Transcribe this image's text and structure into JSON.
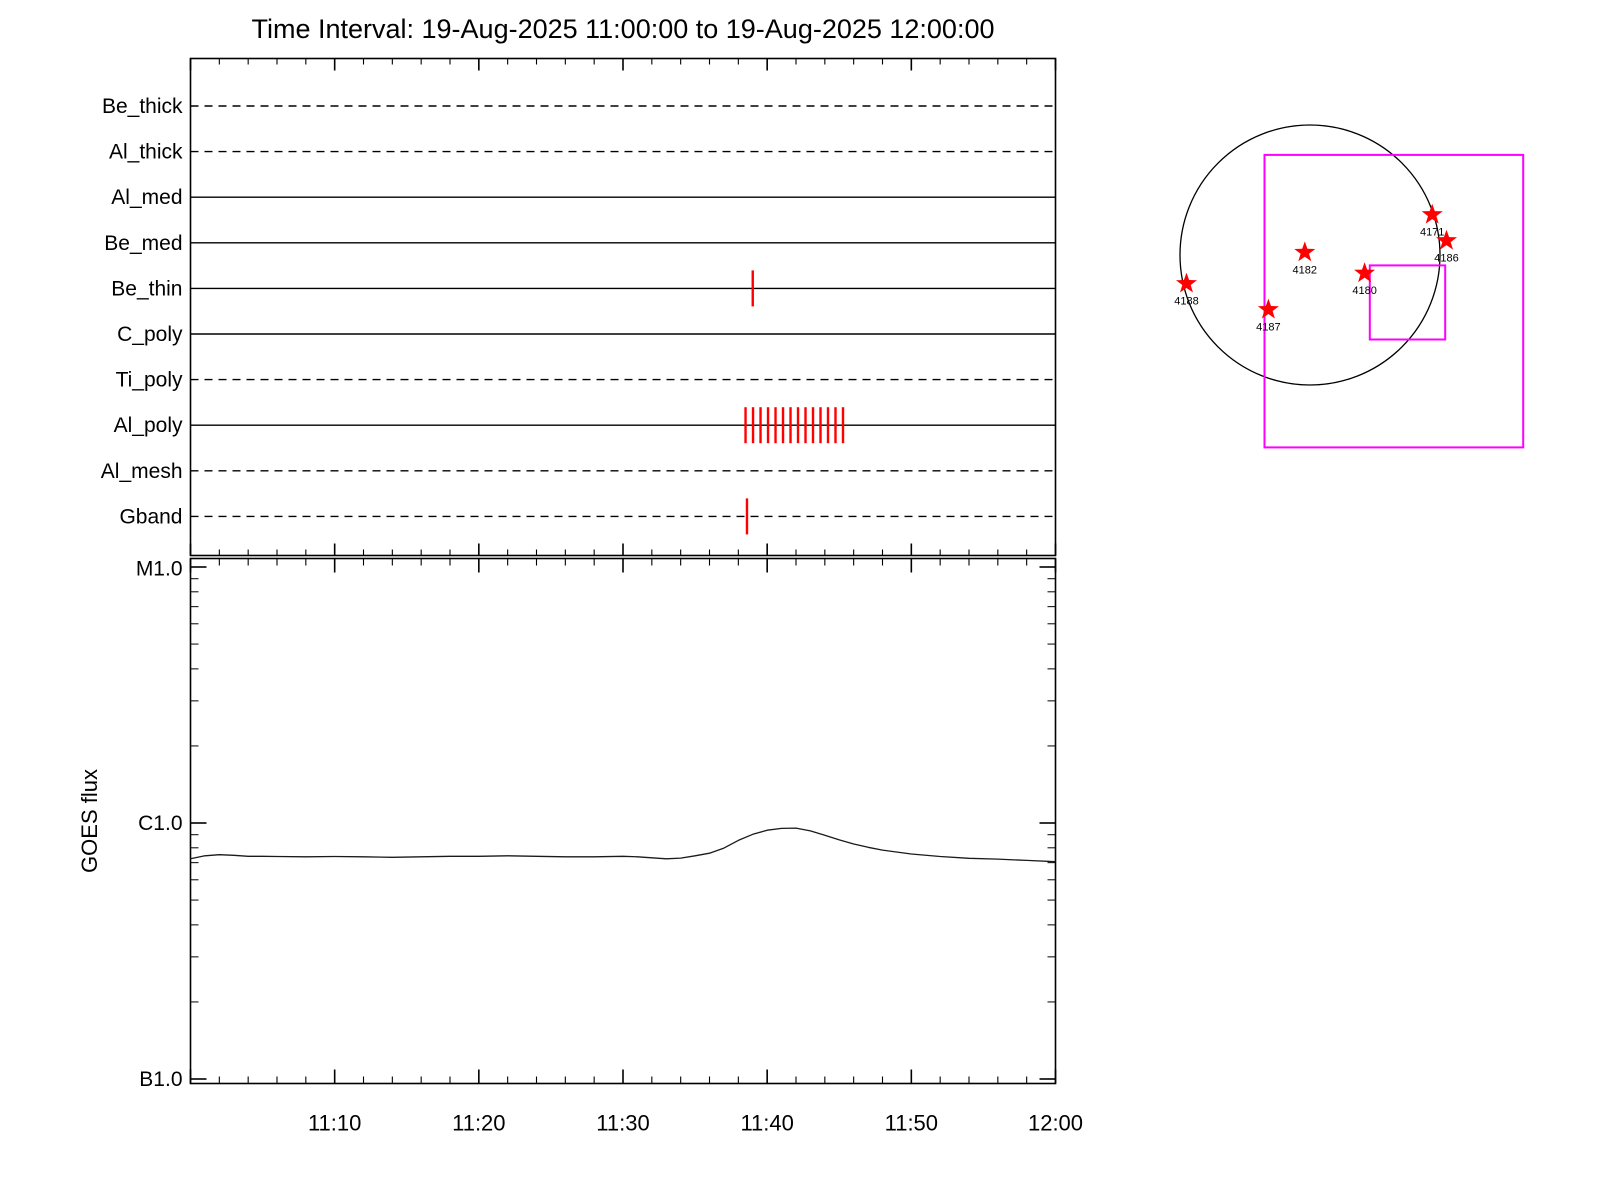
{
  "title": "Time Interval: 19-Aug-2025 11:00:00 to 19-Aug-2025 12:00:00",
  "colors": {
    "exposure_tick": "#ff0000",
    "fov_box": "#ff00ff",
    "axis": "#000000",
    "flux_line": "#1a1a1a",
    "star": "#ff0000"
  },
  "chart_data": [
    {
      "type": "timeline",
      "name": "xrt-filter-exposure-timeline",
      "x_start_label": "11:00",
      "x_end_label": "12:00",
      "x_range_minutes": [
        0,
        60
      ],
      "rows": [
        {
          "label": "Be_thick",
          "line_style": "dashed",
          "exposure_minutes": []
        },
        {
          "label": "Al_thick",
          "line_style": "dashed",
          "exposure_minutes": []
        },
        {
          "label": "Al_med",
          "line_style": "solid",
          "exposure_minutes": []
        },
        {
          "label": "Be_med",
          "line_style": "solid",
          "exposure_minutes": []
        },
        {
          "label": "Be_thin",
          "line_style": "solid",
          "exposure_minutes": [
            39.0
          ]
        },
        {
          "label": "C_poly",
          "line_style": "solid",
          "exposure_minutes": []
        },
        {
          "label": "Ti_poly",
          "line_style": "dashed",
          "exposure_minutes": []
        },
        {
          "label": "Al_poly",
          "line_style": "solid",
          "exposure_minutes": [
            38.5,
            39.02,
            39.54,
            40.06,
            40.58,
            41.1,
            41.62,
            42.14,
            42.66,
            43.18,
            43.7,
            44.22,
            44.74,
            45.26
          ]
        },
        {
          "label": "Al_mesh",
          "line_style": "dashed",
          "exposure_minutes": []
        },
        {
          "label": "Gband",
          "line_style": "dashed",
          "exposure_minutes": [
            38.6
          ]
        }
      ]
    },
    {
      "type": "line",
      "name": "goes-flux",
      "ylabel": "GOES flux",
      "ylim_log10": [
        -7.02,
        -4.97
      ],
      "y_ticks": [
        {
          "label": "M1.0",
          "log10_flux": -5
        },
        {
          "label": "C1.0",
          "log10_flux": -6
        },
        {
          "label": "B1.0",
          "log10_flux": -7
        }
      ],
      "x_minor_step_minutes": 2,
      "x_major_ticks": [
        {
          "minute": 10,
          "label": "11:10"
        },
        {
          "minute": 20,
          "label": "11:20"
        },
        {
          "minute": 30,
          "label": "11:30"
        },
        {
          "minute": 40,
          "label": "11:40"
        },
        {
          "minute": 50,
          "label": "11:50"
        },
        {
          "minute": 60,
          "label": "12:00"
        }
      ],
      "series": [
        {
          "name": "GOES flux",
          "x_minutes": [
            0,
            1,
            2,
            3,
            4,
            5,
            6,
            8,
            10,
            12,
            14,
            16,
            18,
            20,
            22,
            24,
            26,
            28,
            30,
            31,
            32,
            33,
            34,
            35,
            36,
            37,
            38,
            39,
            40,
            41,
            42,
            43,
            44,
            45,
            46,
            47,
            48,
            50,
            52,
            54,
            56,
            58,
            60
          ],
          "log10_flux": [
            -6.14,
            -6.128,
            -6.124,
            -6.126,
            -6.13,
            -6.13,
            -6.131,
            -6.132,
            -6.131,
            -6.132,
            -6.134,
            -6.132,
            -6.13,
            -6.13,
            -6.128,
            -6.13,
            -6.132,
            -6.132,
            -6.13,
            -6.132,
            -6.136,
            -6.14,
            -6.137,
            -6.128,
            -6.118,
            -6.098,
            -6.068,
            -6.044,
            -6.028,
            -6.021,
            -6.02,
            -6.031,
            -6.048,
            -6.066,
            -6.082,
            -6.095,
            -6.106,
            -6.121,
            -6.131,
            -6.138,
            -6.141,
            -6.146,
            -6.151
          ]
        }
      ]
    },
    {
      "type": "solar_map",
      "name": "full-disk-active-regions",
      "active_regions": [
        {
          "label": "4171",
          "x_rsun": 0.94,
          "y_rsun": 0.31
        },
        {
          "label": "4186",
          "x_rsun": 1.05,
          "y_rsun": 0.11
        },
        {
          "label": "4182",
          "x_rsun": -0.04,
          "y_rsun": 0.02
        },
        {
          "label": "4180",
          "x_rsun": 0.42,
          "y_rsun": -0.14
        },
        {
          "label": "4188",
          "x_rsun": -0.95,
          "y_rsun": -0.22
        },
        {
          "label": "4187",
          "x_rsun": -0.32,
          "y_rsun": -0.42
        }
      ],
      "fov_boxes_rsun": [
        {
          "x0": -0.35,
          "y0": -1.48,
          "x1": 1.64,
          "y1": 0.77
        },
        {
          "x0": 0.46,
          "y0": -0.65,
          "x1": 1.04,
          "y1": -0.08
        }
      ]
    }
  ]
}
